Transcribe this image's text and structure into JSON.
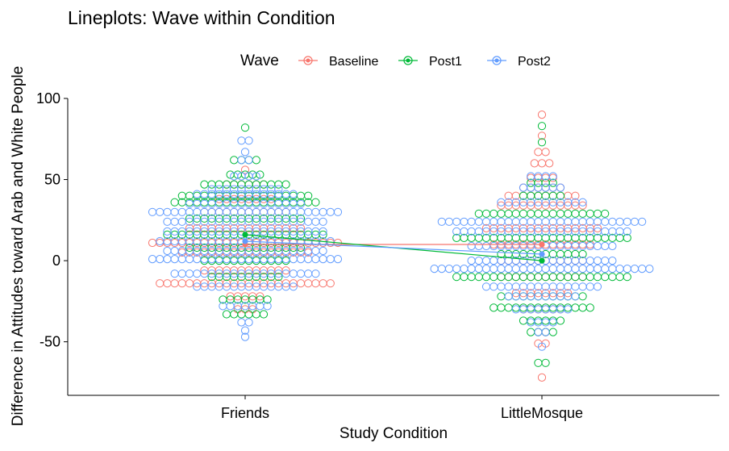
{
  "chart_data": {
    "type": "scatter",
    "subtype": "dotplot-with-mean-lines",
    "title": "Lineplots: Wave within Condition",
    "xlabel": "Study Condition",
    "ylabel": "Difference in Attitudes toward Arab and White People",
    "categories": [
      "Friends",
      "LittleMosque"
    ],
    "yticks": [
      "-50",
      "0",
      "50",
      "100"
    ],
    "ylim": [
      -83,
      100
    ],
    "grid": false,
    "legend": {
      "title": "Wave",
      "position": "top",
      "entries": [
        "Baseline",
        "Post1",
        "Post2"
      ]
    },
    "series": [
      {
        "name": "Baseline",
        "color": "#F8766D",
        "means": [
          10,
          10
        ],
        "points": [
          {
            "category": "Friends",
            "y": 11,
            "count": 26
          },
          {
            "category": "Friends",
            "y": -14,
            "count": 24
          },
          {
            "category": "Friends",
            "y": 5,
            "count": 18
          },
          {
            "category": "Friends",
            "y": 20,
            "count": 16
          },
          {
            "category": "Friends",
            "y": 30,
            "count": 12
          },
          {
            "category": "Friends",
            "y": 38,
            "count": 8
          },
          {
            "category": "Friends",
            "y": 47,
            "count": 6
          },
          {
            "category": "Friends",
            "y": -6,
            "count": 12
          },
          {
            "category": "Friends",
            "y": -22,
            "count": 5
          },
          {
            "category": "Friends",
            "y": -30,
            "count": 3
          },
          {
            "category": "Friends",
            "y": 56,
            "count": 1
          },
          {
            "category": "LittleMosque",
            "y": 10,
            "count": 14
          },
          {
            "category": "LittleMosque",
            "y": 20,
            "count": 16
          },
          {
            "category": "LittleMosque",
            "y": 34,
            "count": 12
          },
          {
            "category": "LittleMosque",
            "y": 40,
            "count": 10
          },
          {
            "category": "LittleMosque",
            "y": 45,
            "count": 6
          },
          {
            "category": "LittleMosque",
            "y": 51,
            "count": 4
          },
          {
            "category": "LittleMosque",
            "y": 0,
            "count": 12
          },
          {
            "category": "LittleMosque",
            "y": -10,
            "count": 12
          },
          {
            "category": "LittleMosque",
            "y": -20,
            "count": 8
          },
          {
            "category": "LittleMosque",
            "y": -30,
            "count": 6
          },
          {
            "category": "LittleMosque",
            "y": 60,
            "count": 3
          },
          {
            "category": "LittleMosque",
            "y": 67,
            "count": 2
          },
          {
            "category": "LittleMosque",
            "y": -51,
            "count": 2
          },
          {
            "category": "LittleMosque",
            "y": -44,
            "count": 2
          },
          {
            "category": "LittleMosque",
            "y": -72,
            "count": 1
          },
          {
            "category": "LittleMosque",
            "y": 90,
            "count": 1
          },
          {
            "category": "LittleMosque",
            "y": 77,
            "count": 1
          }
        ]
      },
      {
        "name": "Post1",
        "color": "#00BA38",
        "means": [
          16,
          0
        ],
        "points": [
          {
            "category": "Friends",
            "y": 47,
            "count": 12
          },
          {
            "category": "Friends",
            "y": 40,
            "count": 18
          },
          {
            "category": "Friends",
            "y": 36,
            "count": 20
          },
          {
            "category": "Friends",
            "y": 26,
            "count": 16
          },
          {
            "category": "Friends",
            "y": 16,
            "count": 22
          },
          {
            "category": "Friends",
            "y": 8,
            "count": 16
          },
          {
            "category": "Friends",
            "y": 0,
            "count": 12
          },
          {
            "category": "Friends",
            "y": -10,
            "count": 10
          },
          {
            "category": "Friends",
            "y": -24,
            "count": 7
          },
          {
            "category": "Friends",
            "y": -33,
            "count": 6
          },
          {
            "category": "Friends",
            "y": 53,
            "count": 5
          },
          {
            "category": "Friends",
            "y": 62,
            "count": 4
          },
          {
            "category": "Friends",
            "y": 82,
            "count": 1
          },
          {
            "category": "LittleMosque",
            "y": 29,
            "count": 18
          },
          {
            "category": "LittleMosque",
            "y": 14,
            "count": 24
          },
          {
            "category": "LittleMosque",
            "y": 4,
            "count": 12
          },
          {
            "category": "LittleMosque",
            "y": -10,
            "count": 24
          },
          {
            "category": "LittleMosque",
            "y": -22,
            "count": 12
          },
          {
            "category": "LittleMosque",
            "y": -29,
            "count": 14
          },
          {
            "category": "LittleMosque",
            "y": -37,
            "count": 6
          },
          {
            "category": "LittleMosque",
            "y": -44,
            "count": 4
          },
          {
            "category": "LittleMosque",
            "y": -63,
            "count": 2
          },
          {
            "category": "LittleMosque",
            "y": 40,
            "count": 6
          },
          {
            "category": "LittleMosque",
            "y": 48,
            "count": 4
          },
          {
            "category": "LittleMosque",
            "y": 73,
            "count": 1
          },
          {
            "category": "LittleMosque",
            "y": 83,
            "count": 1
          }
        ]
      },
      {
        "name": "Post2",
        "color": "#619CFF",
        "means": [
          12,
          4
        ],
        "points": [
          {
            "category": "Friends",
            "y": 1,
            "count": 26
          },
          {
            "category": "Friends",
            "y": 6,
            "count": 22
          },
          {
            "category": "Friends",
            "y": 12,
            "count": 24
          },
          {
            "category": "Friends",
            "y": 18,
            "count": 22
          },
          {
            "category": "Friends",
            "y": 24,
            "count": 22
          },
          {
            "category": "Friends",
            "y": 30,
            "count": 26
          },
          {
            "category": "Friends",
            "y": 35,
            "count": 16
          },
          {
            "category": "Friends",
            "y": 41,
            "count": 14
          },
          {
            "category": "Friends",
            "y": 44,
            "count": 10
          },
          {
            "category": "Friends",
            "y": -8,
            "count": 20
          },
          {
            "category": "Friends",
            "y": -16,
            "count": 14
          },
          {
            "category": "Friends",
            "y": -28,
            "count": 7
          },
          {
            "category": "Friends",
            "y": -38,
            "count": 2
          },
          {
            "category": "Friends",
            "y": -43,
            "count": 1
          },
          {
            "category": "Friends",
            "y": -47,
            "count": 1
          },
          {
            "category": "Friends",
            "y": 52,
            "count": 4
          },
          {
            "category": "Friends",
            "y": 62,
            "count": 2
          },
          {
            "category": "Friends",
            "y": 67,
            "count": 1
          },
          {
            "category": "Friends",
            "y": 74,
            "count": 2
          },
          {
            "category": "LittleMosque",
            "y": 24,
            "count": 28
          },
          {
            "category": "LittleMosque",
            "y": 18,
            "count": 24
          },
          {
            "category": "LittleMosque",
            "y": 9,
            "count": 20
          },
          {
            "category": "LittleMosque",
            "y": 0,
            "count": 20
          },
          {
            "category": "LittleMosque",
            "y": -5,
            "count": 30
          },
          {
            "category": "LittleMosque",
            "y": -16,
            "count": 16
          },
          {
            "category": "LittleMosque",
            "y": -22,
            "count": 10
          },
          {
            "category": "LittleMosque",
            "y": -30,
            "count": 8
          },
          {
            "category": "LittleMosque",
            "y": -38,
            "count": 4
          },
          {
            "category": "LittleMosque",
            "y": -44,
            "count": 2
          },
          {
            "category": "LittleMosque",
            "y": -53,
            "count": 1
          },
          {
            "category": "LittleMosque",
            "y": 36,
            "count": 12
          },
          {
            "category": "LittleMosque",
            "y": 45,
            "count": 6
          },
          {
            "category": "LittleMosque",
            "y": 52,
            "count": 4
          }
        ]
      }
    ]
  }
}
